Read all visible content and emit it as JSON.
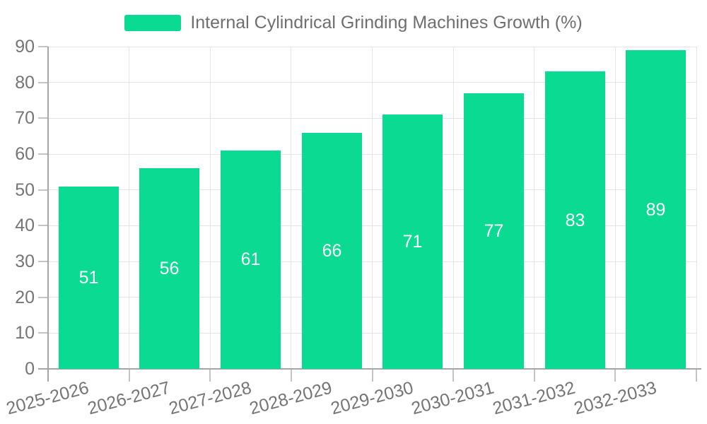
{
  "chart_data": {
    "type": "bar",
    "title": "",
    "legend": {
      "position": "top",
      "label": "Internal Cylindrical Grinding Machines Growth (%)"
    },
    "categories": [
      "2025-2026",
      "2026-2027",
      "2027-2028",
      "2028-2029",
      "2029-2030",
      "2030-2031",
      "2031-2032",
      "2032-2033"
    ],
    "series": [
      {
        "name": "Internal Cylindrical Grinding Machines Growth (%)",
        "values": [
          51,
          56,
          61,
          66,
          71,
          77,
          83,
          89
        ]
      }
    ],
    "xlabel": "",
    "ylabel": "",
    "ylim": [
      0,
      90
    ],
    "yticks": [
      0,
      10,
      20,
      30,
      40,
      50,
      60,
      70,
      80,
      90
    ],
    "grid": true,
    "value_labels_position": "inside-center",
    "colors": {
      "bar": "#0bda92",
      "value_label": "#ffffff",
      "axis_text": "#757575",
      "gridline": "#e4e4e4",
      "axis_line": "#a6a6a6",
      "tick": "#c4c4c4"
    }
  }
}
